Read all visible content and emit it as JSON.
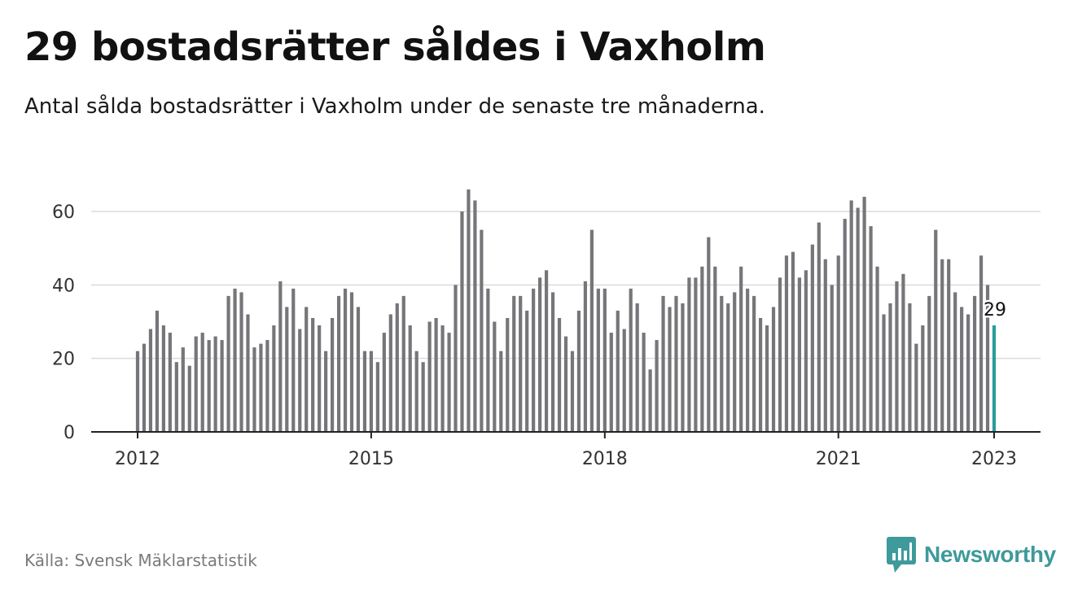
{
  "header": {
    "title": "29 bostadsrätter såldes i Vaxholm",
    "subtitle": "Antal sålda bostadsrätter i Vaxholm under de senaste tre månaderna."
  },
  "footer": {
    "source": "Källa: Svensk Mäklarstatistik",
    "brand": "Newsworthy",
    "brand_icon": "bar-chart-speech-bubble-icon"
  },
  "colors": {
    "bar": "#76767a",
    "highlight": "#2a9d99",
    "grid": "#dcdcdc",
    "axis": "#222222",
    "brand": "#3e9a9b"
  },
  "chart_data": {
    "type": "bar",
    "xlabel": "",
    "ylabel": "",
    "ylim": [
      0,
      70
    ],
    "yticks": [
      0,
      20,
      40,
      60
    ],
    "x_start": "2012-01",
    "xticks": [
      "2012",
      "2015",
      "2018",
      "2021",
      "2023"
    ],
    "grid": true,
    "highlight_label": "29",
    "values": [
      22,
      24,
      28,
      33,
      29,
      27,
      19,
      23,
      18,
      26,
      27,
      25,
      26,
      25,
      37,
      39,
      38,
      32,
      23,
      24,
      25,
      29,
      41,
      34,
      39,
      28,
      34,
      31,
      29,
      22,
      31,
      37,
      39,
      38,
      34,
      22,
      22,
      19,
      27,
      32,
      35,
      37,
      29,
      22,
      19,
      30,
      31,
      29,
      27,
      40,
      60,
      66,
      63,
      55,
      39,
      30,
      22,
      31,
      37,
      37,
      33,
      39,
      42,
      44,
      38,
      31,
      26,
      22,
      33,
      41,
      55,
      39,
      39,
      27,
      33,
      28,
      39,
      35,
      27,
      17,
      25,
      37,
      34,
      37,
      35,
      42,
      42,
      45,
      53,
      45,
      37,
      35,
      38,
      45,
      39,
      37,
      31,
      29,
      34,
      42,
      48,
      49,
      42,
      44,
      51,
      57,
      47,
      40,
      48,
      58,
      63,
      61,
      64,
      56,
      45,
      32,
      35,
      41,
      43,
      35,
      24,
      29,
      37,
      55,
      47,
      47,
      38,
      34,
      32,
      37,
      48,
      40,
      29
    ]
  }
}
